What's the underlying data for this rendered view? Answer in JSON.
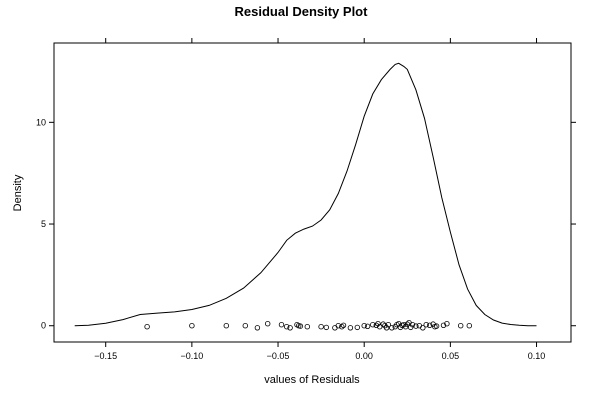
{
  "chart_data": {
    "type": "line",
    "title": "Residual Density Plot",
    "xlabel": "values of Residuals",
    "ylabel": "Density",
    "xlim": [
      -0.18,
      0.12
    ],
    "ylim": [
      -0.8,
      13.9
    ],
    "grid": false,
    "legend": "none",
    "x_ticks": [
      {
        "value": -0.15,
        "label": "−0.15"
      },
      {
        "value": -0.1,
        "label": "−0.10"
      },
      {
        "value": -0.05,
        "label": "−0.05"
      },
      {
        "value": 0.0,
        "label": "0.00"
      },
      {
        "value": 0.05,
        "label": "0.05"
      },
      {
        "value": 0.1,
        "label": "0.10"
      }
    ],
    "y_ticks": [
      {
        "value": 0,
        "label": "0"
      },
      {
        "value": 5,
        "label": "5"
      },
      {
        "value": 10,
        "label": "10"
      }
    ],
    "series": [
      {
        "kind": "density-line",
        "x": [
          -0.168,
          -0.16,
          -0.15,
          -0.14,
          -0.13,
          -0.12,
          -0.11,
          -0.1,
          -0.09,
          -0.08,
          -0.07,
          -0.06,
          -0.05,
          -0.045,
          -0.04,
          -0.035,
          -0.03,
          -0.025,
          -0.02,
          -0.015,
          -0.01,
          -0.005,
          0.0,
          0.005,
          0.01,
          0.015,
          0.018,
          0.02,
          0.023,
          0.025,
          0.03,
          0.035,
          0.04,
          0.045,
          0.05,
          0.055,
          0.06,
          0.065,
          0.07,
          0.075,
          0.08,
          0.085,
          0.09,
          0.095,
          0.1
        ],
        "y": [
          0.0,
          0.02,
          0.12,
          0.3,
          0.55,
          0.62,
          0.68,
          0.8,
          1.0,
          1.35,
          1.85,
          2.6,
          3.6,
          4.2,
          4.55,
          4.75,
          4.9,
          5.2,
          5.7,
          6.5,
          7.6,
          8.9,
          10.3,
          11.4,
          12.1,
          12.6,
          12.85,
          12.9,
          12.75,
          12.6,
          11.6,
          10.2,
          8.3,
          6.3,
          4.6,
          3.0,
          1.8,
          1.0,
          0.55,
          0.28,
          0.13,
          0.06,
          0.02,
          0.0,
          0.0
        ]
      },
      {
        "kind": "rug-points",
        "x": [
          -0.126,
          -0.1,
          -0.08,
          -0.069,
          -0.062,
          -0.056,
          -0.048,
          -0.045,
          -0.043,
          -0.039,
          -0.038,
          -0.037,
          -0.033,
          -0.025,
          -0.022,
          -0.017,
          -0.015,
          -0.013,
          -0.012,
          -0.008,
          -0.004,
          0.0,
          0.002,
          0.005,
          0.007,
          0.008,
          0.009,
          0.011,
          0.012,
          0.013,
          0.014,
          0.016,
          0.018,
          0.019,
          0.02,
          0.021,
          0.022,
          0.023,
          0.024,
          0.025,
          0.026,
          0.027,
          0.028,
          0.03,
          0.032,
          0.034,
          0.036,
          0.038,
          0.04,
          0.041,
          0.042,
          0.046,
          0.048,
          0.056,
          0.061
        ],
        "y": [
          -0.05,
          0.0,
          0.0,
          0.0,
          -0.1,
          0.1,
          0.05,
          -0.05,
          -0.1,
          0.05,
          0.0,
          -0.02,
          -0.05,
          -0.05,
          -0.08,
          -0.1,
          0.0,
          -0.05,
          0.02,
          -0.1,
          -0.08,
          0.0,
          -0.03,
          0.05,
          0.02,
          0.1,
          -0.05,
          0.08,
          0.0,
          -0.1,
          0.05,
          -0.1,
          -0.05,
          0.05,
          0.1,
          -0.08,
          0.02,
          0.05,
          -0.05,
          0.08,
          0.15,
          -0.08,
          0.05,
          -0.02,
          0.0,
          -0.1,
          0.05,
          0.02,
          0.08,
          -0.05,
          -0.02,
          0.02,
          0.1,
          0.0,
          0.0
        ]
      }
    ]
  }
}
